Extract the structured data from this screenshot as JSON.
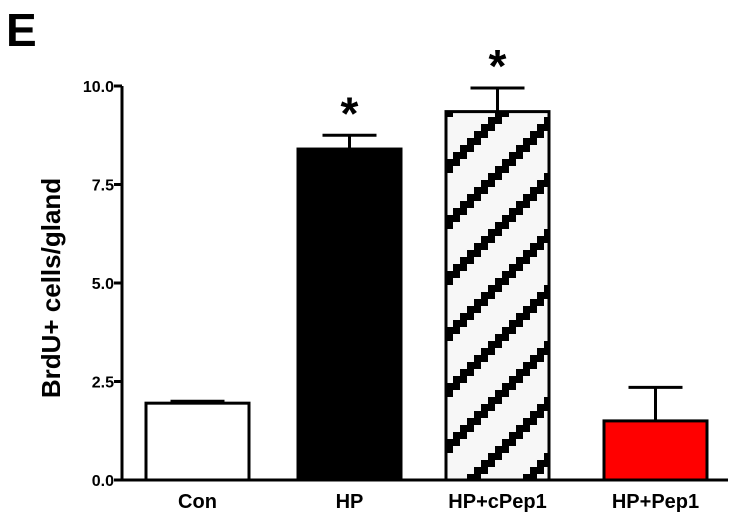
{
  "panel_label": "E",
  "chart_data": {
    "type": "bar",
    "title": "",
    "xlabel": "",
    "ylabel": "BrdU+ cells/gland",
    "ylim": [
      0,
      10
    ],
    "yticks": [
      "0.0",
      "2.5",
      "5.0",
      "7.5",
      "10.0"
    ],
    "categories": [
      "Con",
      "HP",
      "HP+cPep1",
      "HP+Pep1"
    ],
    "values": [
      1.95,
      8.4,
      9.35,
      1.5
    ],
    "errors": [
      0.05,
      0.35,
      0.6,
      0.85
    ],
    "significance": [
      "",
      "*",
      "*",
      ""
    ],
    "bar_styles": [
      {
        "fill": "#ffffff",
        "pattern": "none"
      },
      {
        "fill": "#000000",
        "pattern": "none"
      },
      {
        "fill": "#ffffff",
        "pattern": "black-diagonal-checker"
      },
      {
        "fill": "#ff0000",
        "pattern": "none"
      }
    ],
    "grid": false,
    "legend": "none"
  }
}
